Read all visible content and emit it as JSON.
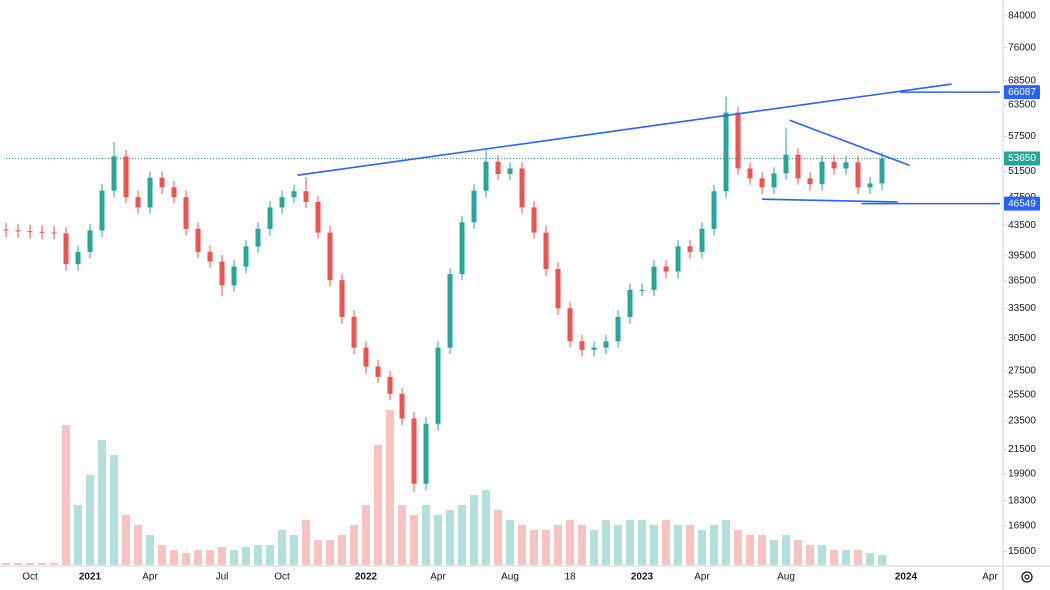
{
  "chart_data": {
    "type": "candlestick",
    "log_scale": true,
    "ylim": [
      14900,
      88300
    ],
    "yticks": [
      84000,
      76000,
      68500,
      63500,
      57500,
      51500,
      47500,
      43500,
      39500,
      36500,
      33500,
      30500,
      27500,
      25500,
      23500,
      21500,
      19900,
      18300,
      16900,
      15600
    ],
    "categories": [
      null,
      null,
      "Oct",
      null,
      null,
      null,
      null,
      "2021",
      null,
      null,
      null,
      null,
      "Apr",
      null,
      null,
      null,
      null,
      null,
      "Jul",
      null,
      null,
      null,
      null,
      "Oct",
      null,
      null,
      null,
      null,
      null,
      null,
      "2022",
      null,
      null,
      null,
      null,
      null,
      "Apr",
      null,
      null,
      null,
      null,
      null,
      "Aug",
      null,
      null,
      null,
      null,
      "18",
      null,
      null,
      null,
      null,
      null,
      "2023",
      null,
      null,
      null,
      null,
      "Apr",
      null,
      null,
      null,
      null,
      null,
      null,
      "Aug",
      null,
      null,
      null,
      null,
      null,
      null,
      null,
      null,
      null,
      "2024",
      null,
      null,
      null,
      null,
      null,
      null,
      "Apr"
    ],
    "up_color": "#26a69a",
    "down_color": "#ef5350",
    "open": [
      42900,
      42800,
      42700,
      42600,
      42500,
      42400,
      38500,
      40000,
      42800,
      48500,
      54000,
      47500,
      46000,
      50500,
      49000,
      47500,
      43000,
      40000,
      38800,
      36000,
      38200,
      40700,
      43000,
      46000,
      47500,
      48400,
      46800,
      42500,
      36600,
      32600,
      29600,
      27900,
      27000,
      25600,
      23700,
      19300,
      23300,
      29600,
      37300,
      43900,
      48500,
      53100,
      51100,
      52000,
      46000,
      42500,
      37900,
      33500,
      30200,
      29400,
      29600,
      30200,
      32600,
      35500,
      35500,
      38200,
      37600,
      40700,
      40000,
      43000,
      48400,
      62000,
      52000,
      50400,
      49000,
      51200,
      54300,
      50400,
      49500,
      53100,
      52000,
      53000,
      49000,
      49600,
      null,
      null,
      null,
      null,
      null,
      null,
      null,
      null,
      null
    ],
    "high": [
      43800,
      43700,
      43600,
      43500,
      43400,
      43200,
      40800,
      43700,
      49500,
      56500,
      55100,
      48500,
      51500,
      51500,
      50000,
      48500,
      43900,
      40800,
      39600,
      39000,
      41500,
      43900,
      46900,
      48500,
      49400,
      50600,
      47700,
      43400,
      37300,
      33300,
      30200,
      28500,
      27500,
      26100,
      24200,
      23800,
      30200,
      38000,
      44800,
      49500,
      55200,
      54200,
      53000,
      53000,
      46900,
      43400,
      38700,
      34200,
      30800,
      30200,
      30800,
      33300,
      36200,
      36200,
      39000,
      39000,
      41500,
      41500,
      43900,
      49400,
      65200,
      63200,
      53000,
      51400,
      52200,
      59000,
      55400,
      51400,
      54200,
      54200,
      54100,
      54100,
      50600,
      54700,
      null,
      null,
      null,
      null,
      null,
      null,
      null,
      null,
      null
    ],
    "low": [
      41900,
      41800,
      41700,
      41600,
      41600,
      37700,
      37700,
      39200,
      41900,
      47500,
      46600,
      45100,
      45100,
      48000,
      46600,
      42100,
      39200,
      38000,
      34800,
      35300,
      37400,
      39900,
      42100,
      45100,
      46600,
      45900,
      41700,
      35900,
      31900,
      29000,
      27300,
      26500,
      25100,
      23200,
      18800,
      18900,
      22800,
      29000,
      36600,
      43000,
      47500,
      50100,
      50100,
      45100,
      41700,
      37100,
      32800,
      29600,
      28800,
      28800,
      29000,
      29600,
      31900,
      34800,
      34800,
      36800,
      36800,
      39200,
      39200,
      42100,
      47400,
      51000,
      49400,
      48000,
      48000,
      50200,
      49400,
      48500,
      48500,
      51000,
      51000,
      48000,
      48000,
      48600,
      null,
      null,
      null,
      null,
      null,
      null,
      null,
      null,
      null
    ],
    "close": [
      42800,
      42700,
      42600,
      42500,
      42400,
      38500,
      40000,
      42800,
      48500,
      54000,
      47500,
      46000,
      50500,
      49000,
      47500,
      43000,
      40000,
      38800,
      36000,
      38200,
      40700,
      43000,
      46000,
      47500,
      48400,
      46800,
      42500,
      36600,
      32600,
      29600,
      27900,
      27000,
      25600,
      23700,
      19300,
      23300,
      29600,
      37300,
      43900,
      48500,
      53100,
      51100,
      52000,
      46000,
      42500,
      37900,
      33500,
      30200,
      29400,
      29600,
      30200,
      32600,
      35500,
      35500,
      38200,
      37600,
      40700,
      40000,
      43000,
      48400,
      62000,
      52000,
      50400,
      49000,
      51200,
      54300,
      50400,
      49500,
      53100,
      52000,
      53000,
      49000,
      49600,
      53650,
      null,
      null,
      null,
      null,
      null,
      null,
      null,
      null,
      null
    ],
    "volume": [
      2,
      2,
      2,
      2,
      2,
      140,
      60,
      90,
      125,
      110,
      50,
      40,
      30,
      20,
      15,
      12,
      15,
      15,
      18,
      15,
      18,
      20,
      20,
      35,
      30,
      45,
      25,
      25,
      30,
      40,
      60,
      120,
      155,
      60,
      50,
      60,
      50,
      55,
      60,
      70,
      75,
      55,
      45,
      40,
      35,
      35,
      40,
      45,
      40,
      35,
      45,
      40,
      45,
      45,
      40,
      45,
      40,
      40,
      35,
      40,
      45,
      35,
      30,
      30,
      25,
      30,
      25,
      20,
      20,
      15,
      15,
      15,
      12,
      10,
      null,
      null,
      null,
      null,
      null,
      null,
      null,
      null,
      null
    ],
    "trendlines": [
      {
        "x": [
          24.3,
          78.8
        ],
        "y": [
          50900,
          67800
        ],
        "color": "#2962ff"
      },
      {
        "x": [
          65.3,
          75.3
        ],
        "y": [
          60500,
          52500
        ],
        "color": "#2962ff"
      },
      {
        "x": [
          63,
          74.3
        ],
        "y": [
          47200,
          46800
        ],
        "color": "#2962ff"
      }
    ],
    "price_labels": [
      {
        "value": 66087,
        "color": "#2962ff",
        "line_from": 74.5
      },
      {
        "value": 53650,
        "color": "#26a69a",
        "line_from": 0
      },
      {
        "value": 46549,
        "color": "#2962ff",
        "line_from": 71.3
      }
    ]
  }
}
